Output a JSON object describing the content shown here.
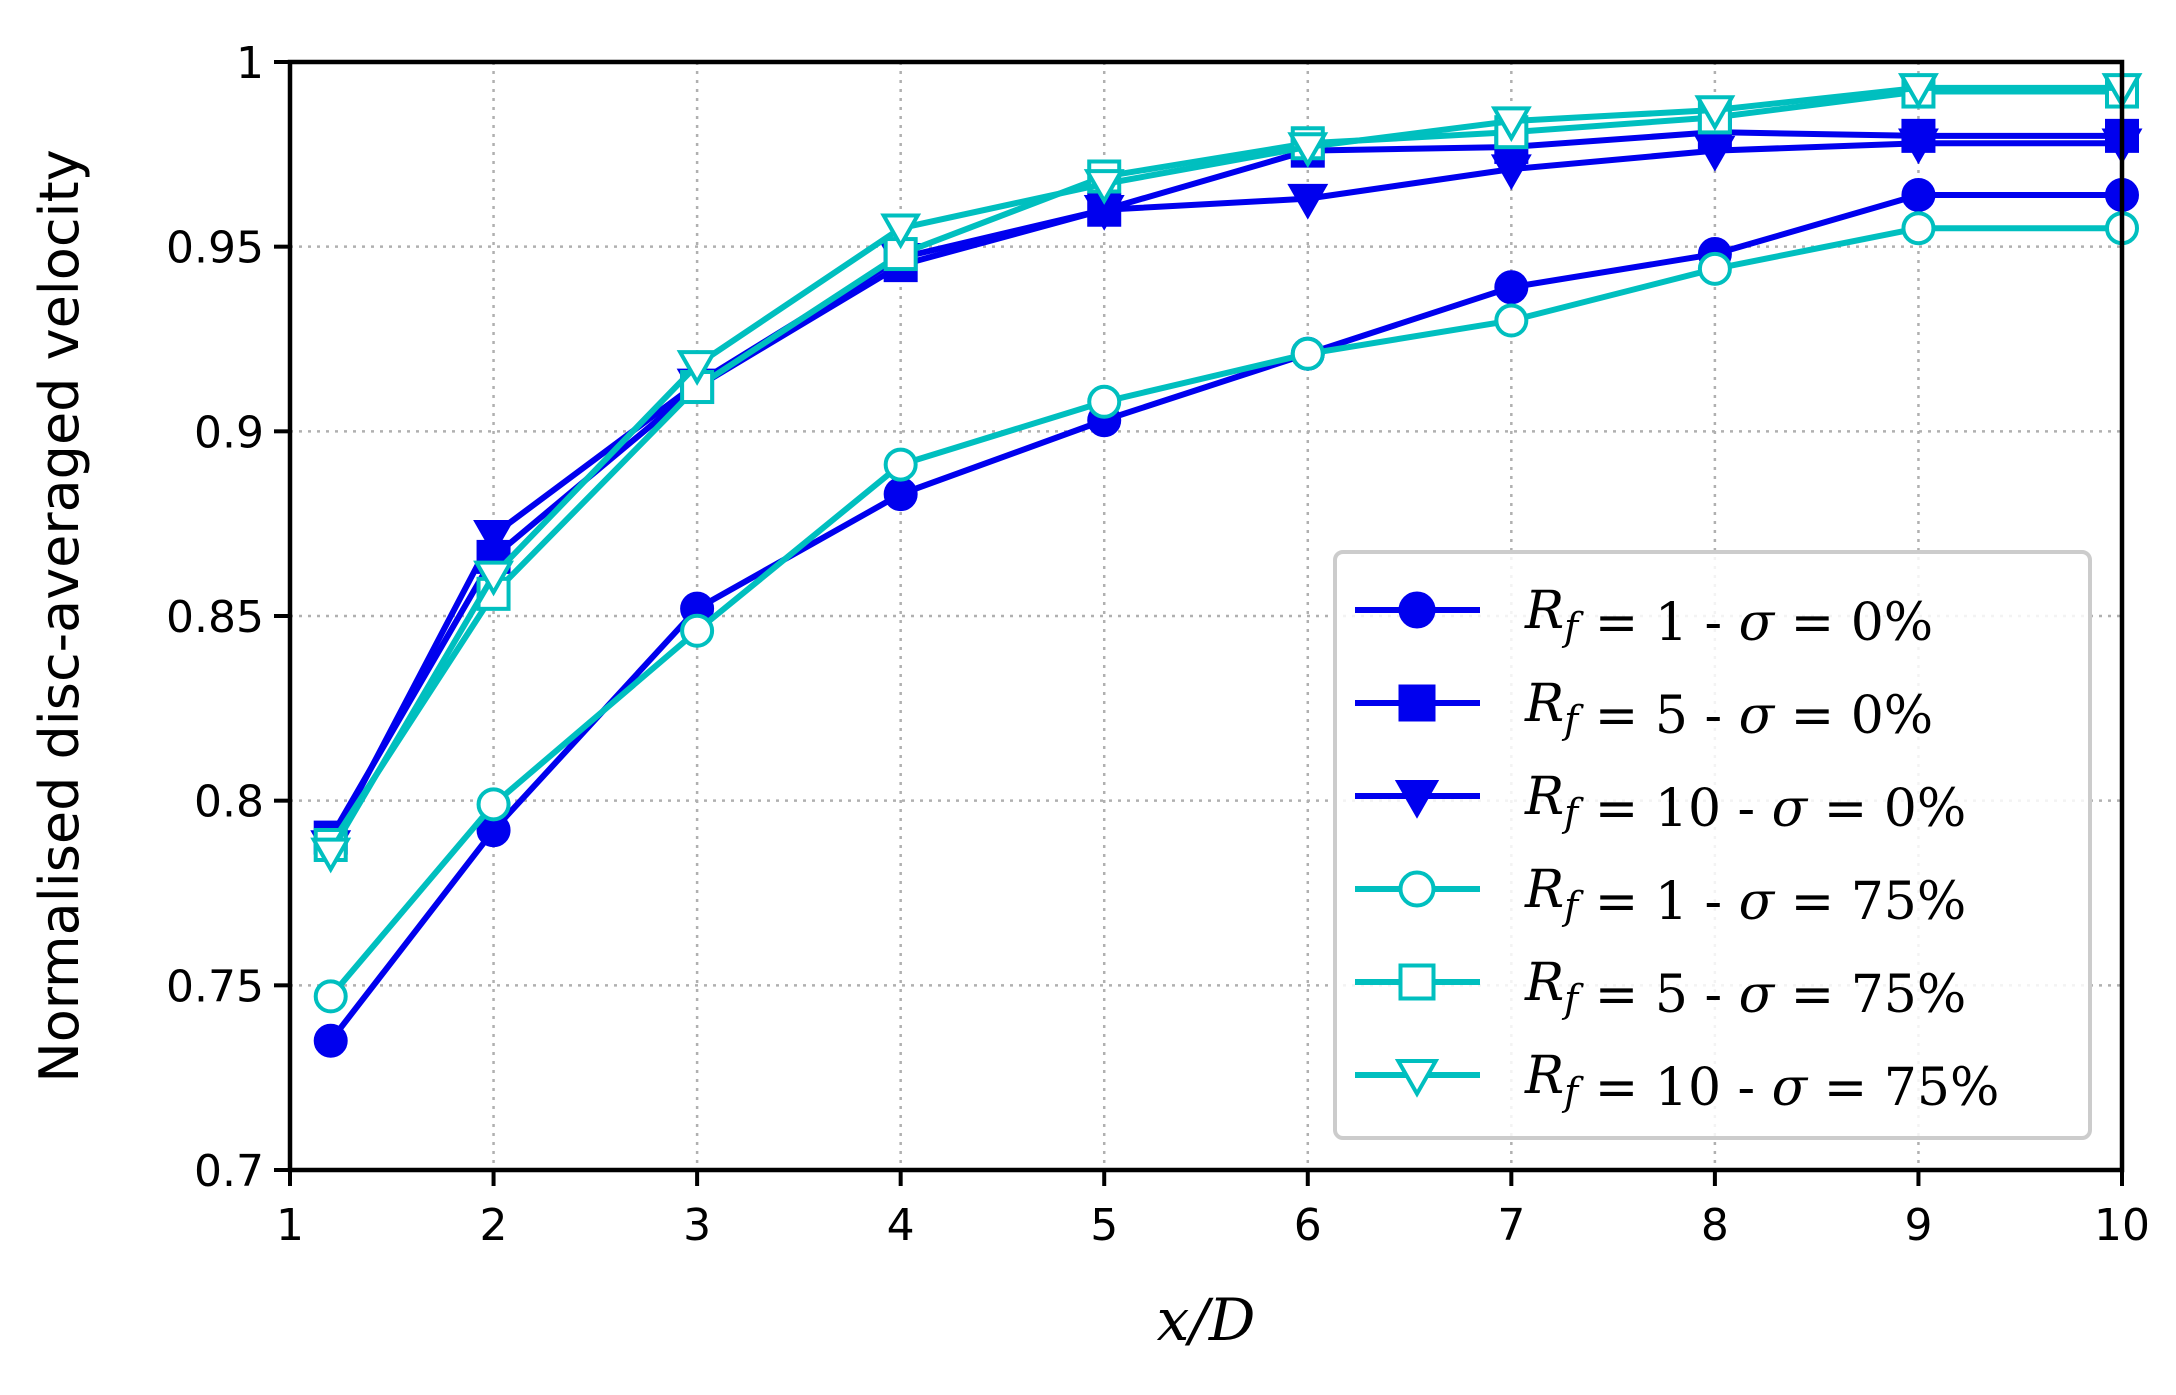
{
  "chart_data": {
    "type": "line",
    "xlabel": "x/D",
    "ylabel": "Normalised disc-averaged velocity",
    "xlim": [
      1,
      10
    ],
    "ylim": [
      0.7,
      1.0
    ],
    "xticks": [
      "1",
      "2",
      "3",
      "4",
      "5",
      "6",
      "7",
      "8",
      "9",
      "10"
    ],
    "yticks": [
      "0.7",
      "0.75",
      "0.8",
      "0.85",
      "0.9",
      "0.95",
      "1"
    ],
    "grid": true,
    "legend_position": "lower-right",
    "x": [
      1.2,
      2,
      3,
      4,
      5,
      6,
      7,
      8,
      9,
      10
    ],
    "series": [
      {
        "name": "R_f = 1 - σ = 0%",
        "label_parts": [
          "1",
          "0%"
        ],
        "color": "#0000ee",
        "marker": "circle",
        "filled": true,
        "values": [
          0.735,
          0.792,
          0.852,
          0.883,
          0.903,
          0.921,
          0.939,
          0.948,
          0.964,
          0.964
        ]
      },
      {
        "name": "R_f = 5 - σ = 0%",
        "label_parts": [
          "5",
          "0%"
        ],
        "color": "#0000ee",
        "marker": "square",
        "filled": true,
        "values": [
          0.79,
          0.866,
          0.912,
          0.945,
          0.96,
          0.976,
          0.977,
          0.981,
          0.98,
          0.98
        ]
      },
      {
        "name": "R_f = 10 - σ = 0%",
        "label_parts": [
          "10",
          "0%"
        ],
        "color": "#0000ee",
        "marker": "triangle-down",
        "filled": true,
        "values": [
          0.788,
          0.872,
          0.913,
          0.947,
          0.96,
          0.963,
          0.971,
          0.976,
          0.978,
          0.978
        ]
      },
      {
        "name": "R_f = 1 - σ = 75%",
        "label_parts": [
          "1",
          "75%"
        ],
        "color": "#00bfbf",
        "marker": "circle",
        "filled": false,
        "values": [
          0.747,
          0.799,
          0.846,
          0.891,
          0.908,
          0.921,
          0.93,
          0.944,
          0.955,
          0.955
        ]
      },
      {
        "name": "R_f = 5 - σ = 75%",
        "label_parts": [
          "5",
          "75%"
        ],
        "color": "#00bfbf",
        "marker": "square",
        "filled": false,
        "values": [
          0.788,
          0.856,
          0.912,
          0.948,
          0.969,
          0.978,
          0.981,
          0.985,
          0.992,
          0.992
        ]
      },
      {
        "name": "R_f = 10 - σ = 75%",
        "label_parts": [
          "10",
          "75%"
        ],
        "color": "#00bfbf",
        "marker": "triangle-down",
        "filled": false,
        "values": [
          0.786,
          0.861,
          0.918,
          0.955,
          0.967,
          0.977,
          0.984,
          0.987,
          0.993,
          0.993
        ]
      }
    ]
  }
}
